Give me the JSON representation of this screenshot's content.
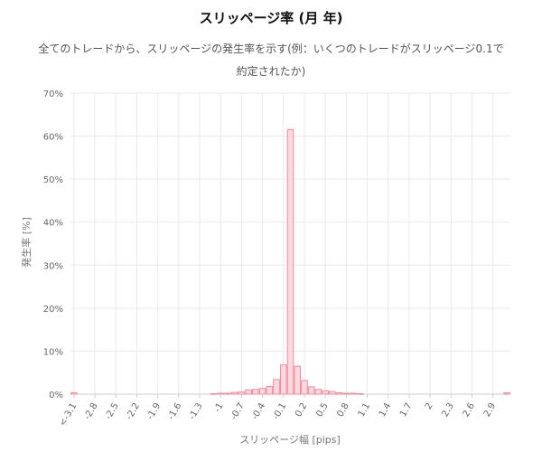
{
  "chart_data": {
    "type": "bar",
    "title": "スリッページ率 (月 年)",
    "subtitle": "全てのトレードから、スリッページの発生率を示す(例：いくつのトレードがスリッページ0.1で約定されたか)",
    "xlabel": "スリッページ幅 [pips]",
    "ylabel": "発生率 [%]",
    "ylim": [
      0,
      70
    ],
    "yticks": [
      "0%",
      "10%",
      "20%",
      "30%",
      "40%",
      "50%",
      "60%",
      "70%"
    ],
    "xtick_labels": [
      "<-3.1",
      "-2.8",
      "-2.5",
      "-2.2",
      "-1.9",
      "-1.6",
      "-1.3",
      "-1",
      "-0.7",
      "-0.4",
      "-0.1",
      "0.2",
      "0.5",
      "0.8",
      "1.1",
      "1.4",
      "1.7",
      "2",
      "2.3",
      "2.6",
      "2.9"
    ],
    "categories": [
      "<-3.1",
      "-3",
      "-2.9",
      "-2.8",
      "-2.7",
      "-2.6",
      "-2.5",
      "-2.4",
      "-2.3",
      "-2.2",
      "-2.1",
      "-2",
      "-1.9",
      "-1.8",
      "-1.7",
      "-1.6",
      "-1.5",
      "-1.4",
      "-1.3",
      "-1.2",
      "-1.1",
      "-1",
      "-0.9",
      "-0.8",
      "-0.7",
      "-0.6",
      "-0.5",
      "-0.4",
      "-0.3",
      "-0.2",
      "-0.1",
      "0",
      "0.1",
      "0.2",
      "0.3",
      "0.4",
      "0.5",
      "0.6",
      "0.7",
      "0.8",
      "0.9",
      "1",
      "1.1",
      "1.2",
      "1.3",
      "1.4",
      "1.5",
      "1.6",
      "1.7",
      "1.8",
      "1.9",
      "2",
      "2.1",
      "2.2",
      "2.3",
      "2.4",
      "2.5",
      "2.6",
      "2.7",
      "2.8",
      "2.9",
      "3",
      ">3.1"
    ],
    "values": [
      0.3,
      0,
      0,
      0,
      0,
      0,
      0,
      0,
      0,
      0,
      0,
      0,
      0,
      0,
      0,
      0,
      0,
      0,
      0,
      0,
      0.1,
      0.2,
      0.2,
      0.4,
      0.5,
      1.0,
      1.1,
      1.3,
      1.8,
      3.4,
      6.8,
      61.5,
      6.5,
      3.2,
      1.7,
      1.1,
      0.8,
      0.6,
      0.3,
      0.2,
      0.2,
      0.1,
      0,
      0,
      0,
      0,
      0,
      0,
      0,
      0,
      0,
      0,
      0,
      0,
      0,
      0,
      0,
      0,
      0,
      0,
      0,
      0,
      0.3
    ],
    "grid": true,
    "colors": {
      "bar_fill": "#ffd9df",
      "bar_stroke": "#f08a9c",
      "grid": "#e9e9e9",
      "axis": "#cccccc"
    }
  }
}
